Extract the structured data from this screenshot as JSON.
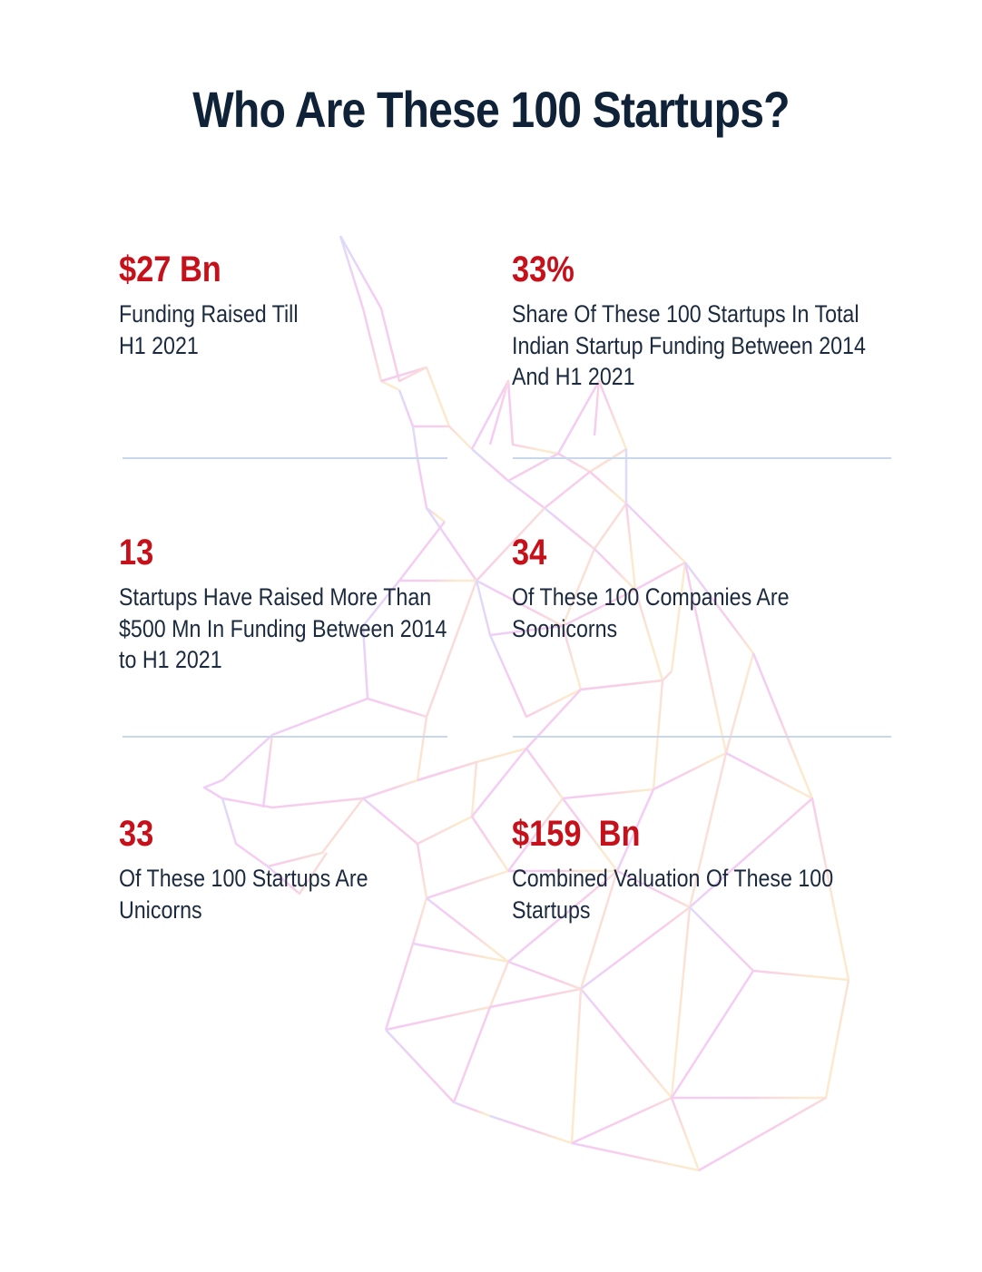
{
  "title": "Who Are These 100 Startups?",
  "colors": {
    "title": "#0f2238",
    "value": "#c6111b",
    "text": "#1b2a3e",
    "divider": "#c7d8ec"
  },
  "background_art": "low-poly-unicorn-head-outline",
  "stats": [
    {
      "value": "$27 Bn",
      "lines": [
        "Funding Raised Till",
        "H1 2021"
      ]
    },
    {
      "value": "33%",
      "lines": [
        "Share Of These 100 Startups In Total",
        "Indian Startup Funding Between 2014",
        "And H1 2021"
      ]
    },
    {
      "value": "13",
      "lines": [
        "Startups Have Raised More Than",
        "$500 Mn In Funding Between 2014",
        "to H1 2021"
      ]
    },
    {
      "value": "34",
      "lines": [
        "Of These 100 Companies Are",
        "Soonicorns"
      ]
    },
    {
      "value": "33",
      "lines": [
        "Of These 100 Startups Are",
        "Unicorns"
      ]
    },
    {
      "value": "$159  Bn",
      "lines": [
        "Combined Valuation Of These 100",
        "Startups"
      ]
    }
  ]
}
